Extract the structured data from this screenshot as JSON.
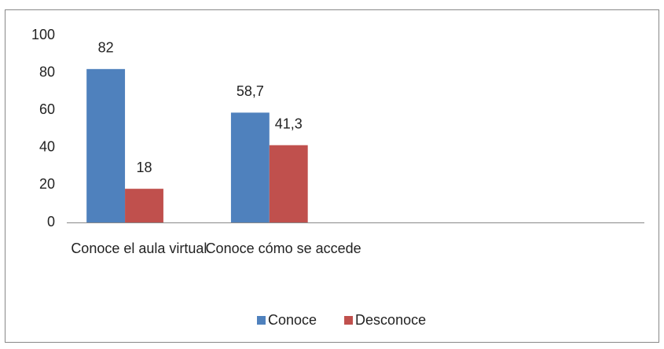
{
  "chart_data": {
    "type": "bar",
    "categories": [
      "Conoce el aula virtual",
      "Conoce cómo se accede",
      null,
      null
    ],
    "series": [
      {
        "name": "Conoce",
        "color": "#4f81bd",
        "values": [
          82,
          58.7,
          null,
          null
        ],
        "value_labels": [
          "82",
          "58,7",
          null,
          null
        ]
      },
      {
        "name": "Desconoce",
        "color": "#c0504d",
        "values": [
          18,
          41.3,
          null,
          null
        ],
        "value_labels": [
          "18",
          "41,3",
          null,
          null
        ]
      }
    ],
    "ylim": [
      0,
      100
    ],
    "yticks": [
      0,
      20,
      40,
      60,
      80,
      100
    ],
    "grid": false,
    "legend": "bottom"
  }
}
